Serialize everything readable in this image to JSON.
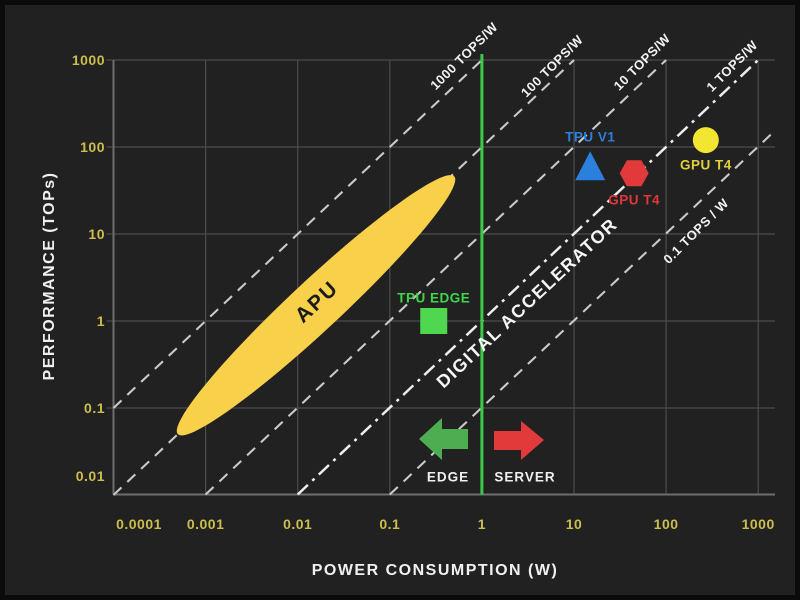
{
  "figure": {
    "background": "#212121",
    "frame_color": "#0b0b0b"
  },
  "chart_data": {
    "type": "scatter",
    "scale": "log-log",
    "title": "",
    "xlabel": "POWER CONSUMPTION (W)",
    "ylabel": "PERFORMANCE (TOPs)",
    "xlim": [
      0.0001,
      1000
    ],
    "ylim": [
      0.01,
      1000
    ],
    "grid": true,
    "grid_color": "#4c4c4c",
    "spine_color": "#6e6e6e",
    "tick_color": "#cdbe4c",
    "x_ticks": [
      "0.0001",
      "0.001",
      "0.01",
      "0.1",
      "1",
      "10",
      "100",
      "1000"
    ],
    "y_ticks": [
      "1000",
      "100",
      "10",
      "1",
      "0.1",
      "0.01"
    ],
    "points": [
      {
        "label": "TPU EDGE",
        "x": 0.3,
        "y": 1,
        "marker": "square",
        "color": "#4fd84f",
        "label_color": "#3fd64a",
        "label_pos": "above"
      },
      {
        "label": "TPU V1",
        "x": 15,
        "y": 60,
        "marker": "triangle",
        "color": "#2b7fdd",
        "label_color": "#2b7fdd",
        "label_pos": "above"
      },
      {
        "label": "GPU T4",
        "x": 45,
        "y": 50,
        "marker": "hexagon",
        "color": "#e23a3b",
        "label_color": "#e2373a",
        "label_pos": "below"
      },
      {
        "label": "GPU T4",
        "x": 270,
        "y": 120,
        "marker": "circle",
        "color": "#f3e632",
        "label_color": "#e3d03f",
        "label_pos": "below"
      }
    ],
    "apu_region": {
      "label": "APU",
      "shape": "ellipse",
      "x_range": [
        0.0005,
        0.5
      ],
      "y_range": [
        0.05,
        46
      ],
      "color": "#f8d04a",
      "label_color": "#1b1b1b"
    },
    "ratio_lines": [
      {
        "label": "1000 TOPS/W",
        "tops_per_watt": 1000,
        "style": "dashed"
      },
      {
        "label": "100 TOPS/W",
        "tops_per_watt": 100,
        "style": "dashed"
      },
      {
        "label": "10 TOPS/W",
        "tops_per_watt": 10,
        "style": "dashed"
      },
      {
        "label": "1 TOPS/W",
        "tops_per_watt": 1,
        "style": "dashdot"
      },
      {
        "label": "0.1 TOPS / W",
        "tops_per_watt": 0.1,
        "style": "dashed"
      }
    ],
    "ratio_line_colors": {
      "dashed": "#c9c9c9",
      "dashdot": "#ededed"
    },
    "divider": {
      "x": 1,
      "color": "#3ccb49",
      "left_label": "EDGE",
      "right_label": "SERVER",
      "left_arrow_color": "#4cae50",
      "right_arrow_color": "#e23a3b",
      "region_label_color": "#f0f0f0"
    },
    "diagonal_annotation": {
      "text": "DIGITAL ACCELERATOR",
      "color": "#f5f5f5"
    }
  }
}
